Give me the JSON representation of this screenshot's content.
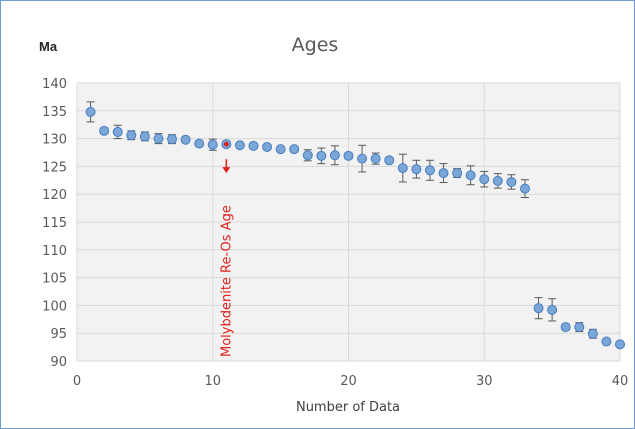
{
  "chart_data": {
    "type": "scatter",
    "title": "Ages",
    "unit_label": "Ma",
    "xlabel": "Number of Data",
    "ylabel": "",
    "xlim": [
      0,
      40
    ],
    "ylim": [
      90,
      140
    ],
    "x_ticks": [
      0,
      10,
      20,
      30,
      40
    ],
    "y_ticks": [
      90,
      95,
      100,
      105,
      110,
      115,
      120,
      125,
      130,
      135,
      140
    ],
    "grid": true,
    "legend": "none",
    "marker_color": "#7aa6d8",
    "marker_edge": "#4a7fbf",
    "highlight_color": "#e0201b",
    "points": [
      {
        "x": 1,
        "y": 134.8,
        "err": 1.8
      },
      {
        "x": 2,
        "y": 131.4,
        "err": 0.5
      },
      {
        "x": 3,
        "y": 131.2,
        "err": 1.2
      },
      {
        "x": 4,
        "y": 130.6,
        "err": 0.8
      },
      {
        "x": 5,
        "y": 130.4,
        "err": 0.8
      },
      {
        "x": 6,
        "y": 130.0,
        "err": 0.9
      },
      {
        "x": 7,
        "y": 129.9,
        "err": 0.8
      },
      {
        "x": 8,
        "y": 129.8,
        "err": 0.5
      },
      {
        "x": 9,
        "y": 129.1,
        "err": 0.5
      },
      {
        "x": 10,
        "y": 128.9,
        "err": 1.0
      },
      {
        "x": 11,
        "y": 129.0,
        "err": 0.5,
        "highlight": true
      },
      {
        "x": 12,
        "y": 128.8,
        "err": 0.3
      },
      {
        "x": 13,
        "y": 128.7,
        "err": 0.3
      },
      {
        "x": 14,
        "y": 128.5,
        "err": 0.3
      },
      {
        "x": 15,
        "y": 128.1,
        "err": 0.4
      },
      {
        "x": 16,
        "y": 128.1,
        "err": 0.5
      },
      {
        "x": 17,
        "y": 127.0,
        "err": 1.0
      },
      {
        "x": 18,
        "y": 126.9,
        "err": 1.4
      },
      {
        "x": 19,
        "y": 127.0,
        "err": 1.7
      },
      {
        "x": 20,
        "y": 126.9,
        "err": 0.5
      },
      {
        "x": 21,
        "y": 126.4,
        "err": 2.4
      },
      {
        "x": 22,
        "y": 126.4,
        "err": 1.0
      },
      {
        "x": 23,
        "y": 126.1,
        "err": 0.5
      },
      {
        "x": 24,
        "y": 124.7,
        "err": 2.5
      },
      {
        "x": 25,
        "y": 124.5,
        "err": 1.6
      },
      {
        "x": 26,
        "y": 124.3,
        "err": 1.8
      },
      {
        "x": 27,
        "y": 123.8,
        "err": 1.7
      },
      {
        "x": 28,
        "y": 123.8,
        "err": 0.8
      },
      {
        "x": 29,
        "y": 123.4,
        "err": 1.7
      },
      {
        "x": 30,
        "y": 122.7,
        "err": 1.4
      },
      {
        "x": 31,
        "y": 122.4,
        "err": 1.3
      },
      {
        "x": 32,
        "y": 122.2,
        "err": 1.3
      },
      {
        "x": 33,
        "y": 121.0,
        "err": 1.6
      },
      {
        "x": 34,
        "y": 99.5,
        "err": 1.9
      },
      {
        "x": 35,
        "y": 99.2,
        "err": 2.0
      },
      {
        "x": 36,
        "y": 96.1,
        "err": 0.5
      },
      {
        "x": 37,
        "y": 96.1,
        "err": 0.8
      },
      {
        "x": 38,
        "y": 94.9,
        "err": 0.8
      },
      {
        "x": 39,
        "y": 93.5,
        "err": 0.4
      },
      {
        "x": 40,
        "y": 93.0,
        "err": 0.4
      }
    ],
    "annotation": {
      "text": "Molybdenite Re-Os Age",
      "x": 11,
      "arrow_from": 126.3,
      "arrow_to": 123.8
    }
  }
}
